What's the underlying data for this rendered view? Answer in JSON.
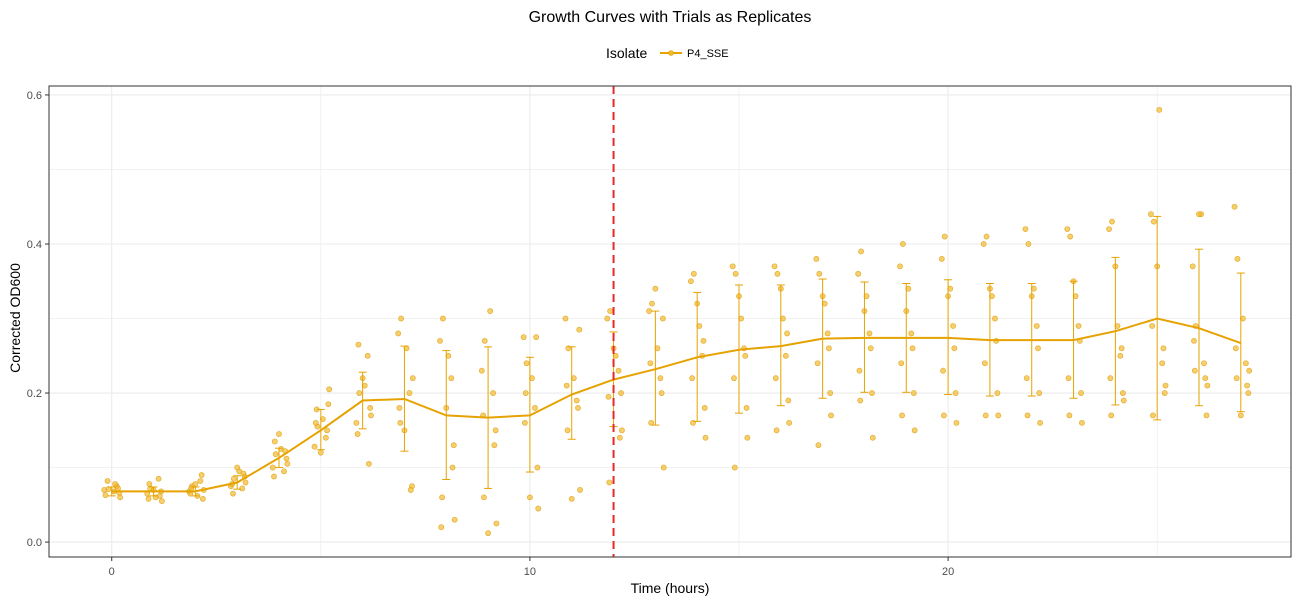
{
  "chart_data": {
    "type": "line",
    "title": "Growth Curves with Trials as Replicates",
    "xlabel": "Time (hours)",
    "ylabel": "Corrected OD600",
    "xlim": [
      -1.5,
      28.2
    ],
    "ylim": [
      -0.02,
      0.612
    ],
    "x_ticks": [
      0,
      10,
      20
    ],
    "y_ticks": [
      0.0,
      0.2,
      0.4,
      0.6
    ],
    "x_tick_labels": [
      "0",
      "10",
      "20"
    ],
    "y_tick_labels": [
      "0.0",
      "0.2",
      "0.4",
      "0.6"
    ],
    "grid": true,
    "legend": {
      "title": "Isolate",
      "position": "top",
      "entries": [
        "P4_SSE"
      ]
    },
    "colors": {
      "series": "#e6a200",
      "points": "#f2b92e",
      "vline": "#e8282a",
      "grid": "#ebebeb"
    },
    "vline": {
      "x": 12,
      "style": "dashed"
    },
    "series": [
      {
        "name": "P4_SSE",
        "x": [
          0,
          1,
          2,
          3,
          4,
          5,
          6,
          7,
          8,
          9,
          10,
          11,
          12,
          13,
          14,
          15,
          16,
          17,
          18,
          19,
          20,
          21,
          22,
          23,
          24,
          25,
          26,
          27
        ],
        "mean": [
          0.068,
          0.068,
          0.068,
          0.08,
          0.113,
          0.15,
          0.19,
          0.192,
          0.17,
          0.167,
          0.17,
          0.198,
          0.218,
          0.232,
          0.248,
          0.258,
          0.263,
          0.273,
          0.274,
          0.274,
          0.274,
          0.271,
          0.271,
          0.271,
          0.283,
          0.3,
          0.287,
          0.267
        ],
        "lower": [
          0.062,
          0.062,
          0.062,
          0.071,
          0.1,
          0.124,
          0.152,
          0.122,
          0.084,
          0.072,
          0.094,
          0.138,
          0.155,
          0.157,
          0.162,
          0.173,
          0.183,
          0.193,
          0.201,
          0.201,
          0.198,
          0.196,
          0.196,
          0.193,
          0.184,
          0.164,
          0.183,
          0.175
        ],
        "upper": [
          0.074,
          0.074,
          0.074,
          0.089,
          0.126,
          0.178,
          0.228,
          0.263,
          0.257,
          0.262,
          0.248,
          0.262,
          0.282,
          0.31,
          0.335,
          0.345,
          0.345,
          0.353,
          0.349,
          0.347,
          0.352,
          0.347,
          0.347,
          0.35,
          0.382,
          0.437,
          0.393,
          0.361
        ],
        "points": [
          [
            -0.15,
            0.063
          ],
          [
            -0.08,
            0.071
          ],
          [
            0.05,
            0.068
          ],
          [
            0.12,
            0.075
          ],
          [
            0.18,
            0.066
          ],
          [
            -0.1,
            0.082
          ],
          [
            0.2,
            0.06
          ],
          [
            0.08,
            0.078
          ],
          [
            -0.18,
            0.07
          ],
          [
            0.15,
            0.072
          ],
          [
            0.85,
            0.065
          ],
          [
            0.92,
            0.072
          ],
          [
            1.05,
            0.06
          ],
          [
            1.12,
            0.085
          ],
          [
            1.18,
            0.068
          ],
          [
            0.9,
            0.078
          ],
          [
            1.2,
            0.055
          ],
          [
            1.0,
            0.07
          ],
          [
            0.88,
            0.058
          ],
          [
            1.15,
            0.062
          ],
          [
            1.85,
            0.068
          ],
          [
            1.92,
            0.075
          ],
          [
            2.05,
            0.062
          ],
          [
            2.12,
            0.082
          ],
          [
            2.18,
            0.058
          ],
          [
            1.9,
            0.072
          ],
          [
            2.2,
            0.07
          ],
          [
            2.0,
            0.078
          ],
          [
            1.88,
            0.065
          ],
          [
            2.15,
            0.09
          ],
          [
            2.85,
            0.075
          ],
          [
            2.92,
            0.085
          ],
          [
            3.05,
            0.095
          ],
          [
            3.12,
            0.072
          ],
          [
            3.18,
            0.088
          ],
          [
            2.9,
            0.065
          ],
          [
            3.2,
            0.08
          ],
          [
            3.0,
            0.1
          ],
          [
            2.88,
            0.078
          ],
          [
            3.15,
            0.092
          ],
          [
            3.85,
            0.1
          ],
          [
            3.92,
            0.118
          ],
          [
            4.05,
            0.125
          ],
          [
            4.12,
            0.095
          ],
          [
            4.18,
            0.112
          ],
          [
            3.9,
            0.135
          ],
          [
            4.2,
            0.105
          ],
          [
            4.0,
            0.145
          ],
          [
            3.88,
            0.088
          ],
          [
            4.15,
            0.122
          ],
          [
            4.85,
            0.128
          ],
          [
            4.92,
            0.155
          ],
          [
            5.05,
            0.165
          ],
          [
            5.12,
            0.14
          ],
          [
            5.18,
            0.185
          ],
          [
            4.9,
            0.178
          ],
          [
            5.2,
            0.205
          ],
          [
            5.0,
            0.12
          ],
          [
            4.88,
            0.16
          ],
          [
            5.15,
            0.15
          ],
          [
            5.85,
            0.16
          ],
          [
            5.92,
            0.2
          ],
          [
            6.05,
            0.21
          ],
          [
            6.12,
            0.25
          ],
          [
            6.18,
            0.18
          ],
          [
            5.9,
            0.265
          ],
          [
            6.2,
            0.17
          ],
          [
            6.0,
            0.22
          ],
          [
            5.88,
            0.145
          ],
          [
            6.15,
            0.105
          ],
          [
            6.85,
            0.28
          ],
          [
            6.92,
            0.3
          ],
          [
            7.05,
            0.26
          ],
          [
            7.12,
            0.2
          ],
          [
            7.18,
            0.075
          ],
          [
            6.9,
            0.16
          ],
          [
            7.2,
            0.22
          ],
          [
            7.0,
            0.15
          ],
          [
            6.88,
            0.18
          ],
          [
            7.15,
            0.07
          ],
          [
            7.85,
            0.27
          ],
          [
            7.92,
            0.3
          ],
          [
            8.05,
            0.25
          ],
          [
            8.12,
            0.22
          ],
          [
            8.18,
            0.13
          ],
          [
            7.9,
            0.06
          ],
          [
            8.2,
            0.03
          ],
          [
            8.0,
            0.18
          ],
          [
            7.88,
            0.02
          ],
          [
            8.15,
            0.1
          ],
          [
            8.85,
            0.23
          ],
          [
            8.92,
            0.27
          ],
          [
            9.05,
            0.31
          ],
          [
            9.12,
            0.2
          ],
          [
            9.18,
            0.15
          ],
          [
            8.9,
            0.06
          ],
          [
            9.2,
            0.025
          ],
          [
            9.0,
            0.012
          ],
          [
            8.88,
            0.17
          ],
          [
            9.15,
            0.13
          ],
          [
            9.85,
            0.275
          ],
          [
            9.92,
            0.24
          ],
          [
            10.05,
            0.22
          ],
          [
            10.12,
            0.18
          ],
          [
            10.18,
            0.1
          ],
          [
            9.9,
            0.2
          ],
          [
            10.2,
            0.045
          ],
          [
            10.0,
            0.06
          ],
          [
            9.88,
            0.16
          ],
          [
            10.15,
            0.275
          ],
          [
            10.85,
            0.3
          ],
          [
            10.92,
            0.26
          ],
          [
            11.05,
            0.22
          ],
          [
            11.12,
            0.19
          ],
          [
            11.18,
            0.285
          ],
          [
            10.9,
            0.15
          ],
          [
            11.2,
            0.07
          ],
          [
            11.0,
            0.058
          ],
          [
            10.88,
            0.21
          ],
          [
            11.15,
            0.18
          ],
          [
            11.85,
            0.3
          ],
          [
            11.92,
            0.31
          ],
          [
            12.05,
            0.25
          ],
          [
            12.12,
            0.23
          ],
          [
            12.18,
            0.2
          ],
          [
            11.9,
            0.08
          ],
          [
            12.2,
            0.15
          ],
          [
            12.0,
            0.26
          ],
          [
            11.88,
            0.195
          ],
          [
            12.15,
            0.14
          ],
          [
            12.85,
            0.31
          ],
          [
            12.92,
            0.32
          ],
          [
            13.05,
            0.26
          ],
          [
            13.12,
            0.22
          ],
          [
            13.18,
            0.3
          ],
          [
            12.9,
            0.16
          ],
          [
            13.2,
            0.1
          ],
          [
            13.0,
            0.34
          ],
          [
            12.88,
            0.24
          ],
          [
            13.15,
            0.2
          ],
          [
            13.85,
            0.35
          ],
          [
            13.92,
            0.36
          ],
          [
            14.05,
            0.29
          ],
          [
            14.12,
            0.25
          ],
          [
            14.18,
            0.18
          ],
          [
            13.9,
            0.16
          ],
          [
            14.2,
            0.14
          ],
          [
            14.0,
            0.32
          ],
          [
            13.88,
            0.22
          ],
          [
            14.15,
            0.27
          ],
          [
            14.85,
            0.37
          ],
          [
            14.92,
            0.36
          ],
          [
            15.05,
            0.3
          ],
          [
            15.12,
            0.26
          ],
          [
            15.18,
            0.18
          ],
          [
            14.9,
            0.1
          ],
          [
            15.2,
            0.14
          ],
          [
            15.0,
            0.33
          ],
          [
            14.88,
            0.22
          ],
          [
            15.15,
            0.25
          ],
          [
            15.85,
            0.37
          ],
          [
            15.92,
            0.36
          ],
          [
            16.05,
            0.3
          ],
          [
            16.12,
            0.25
          ],
          [
            16.18,
            0.19
          ],
          [
            15.9,
            0.15
          ],
          [
            16.2,
            0.16
          ],
          [
            16.0,
            0.34
          ],
          [
            15.88,
            0.22
          ],
          [
            16.15,
            0.28
          ],
          [
            16.85,
            0.38
          ],
          [
            16.92,
            0.36
          ],
          [
            17.05,
            0.32
          ],
          [
            17.12,
            0.28
          ],
          [
            17.18,
            0.2
          ],
          [
            16.9,
            0.13
          ],
          [
            17.2,
            0.17
          ],
          [
            17.0,
            0.33
          ],
          [
            16.88,
            0.24
          ],
          [
            17.15,
            0.26
          ],
          [
            17.85,
            0.36
          ],
          [
            17.92,
            0.39
          ],
          [
            18.05,
            0.33
          ],
          [
            18.12,
            0.28
          ],
          [
            18.18,
            0.2
          ],
          [
            17.9,
            0.19
          ],
          [
            18.2,
            0.14
          ],
          [
            18.0,
            0.31
          ],
          [
            17.88,
            0.23
          ],
          [
            18.15,
            0.26
          ],
          [
            18.85,
            0.37
          ],
          [
            18.92,
            0.4
          ],
          [
            19.05,
            0.34
          ],
          [
            19.12,
            0.28
          ],
          [
            19.18,
            0.2
          ],
          [
            18.9,
            0.17
          ],
          [
            19.2,
            0.15
          ],
          [
            19.0,
            0.31
          ],
          [
            18.88,
            0.24
          ],
          [
            19.15,
            0.26
          ],
          [
            19.85,
            0.38
          ],
          [
            19.92,
            0.41
          ],
          [
            20.05,
            0.34
          ],
          [
            20.12,
            0.29
          ],
          [
            20.18,
            0.2
          ],
          [
            19.9,
            0.17
          ],
          [
            20.2,
            0.16
          ],
          [
            20.0,
            0.33
          ],
          [
            19.88,
            0.23
          ],
          [
            20.15,
            0.26
          ],
          [
            20.85,
            0.4
          ],
          [
            20.92,
            0.41
          ],
          [
            21.05,
            0.33
          ],
          [
            21.12,
            0.3
          ],
          [
            21.18,
            0.2
          ],
          [
            20.9,
            0.17
          ],
          [
            21.2,
            0.17
          ],
          [
            21.0,
            0.34
          ],
          [
            20.88,
            0.24
          ],
          [
            21.15,
            0.27
          ],
          [
            21.85,
            0.42
          ],
          [
            21.92,
            0.4
          ],
          [
            22.05,
            0.34
          ],
          [
            22.12,
            0.29
          ],
          [
            22.18,
            0.2
          ],
          [
            21.9,
            0.17
          ],
          [
            22.2,
            0.16
          ],
          [
            22.0,
            0.33
          ],
          [
            21.88,
            0.22
          ],
          [
            22.15,
            0.26
          ],
          [
            22.85,
            0.42
          ],
          [
            22.92,
            0.41
          ],
          [
            23.05,
            0.33
          ],
          [
            23.12,
            0.29
          ],
          [
            23.18,
            0.2
          ],
          [
            22.9,
            0.17
          ],
          [
            23.2,
            0.16
          ],
          [
            23.0,
            0.35
          ],
          [
            22.88,
            0.22
          ],
          [
            23.15,
            0.27
          ],
          [
            23.85,
            0.42
          ],
          [
            23.92,
            0.43
          ],
          [
            24.05,
            0.29
          ],
          [
            24.12,
            0.25
          ],
          [
            24.18,
            0.2
          ],
          [
            23.9,
            0.17
          ],
          [
            24.2,
            0.19
          ],
          [
            24.0,
            0.37
          ],
          [
            23.88,
            0.22
          ],
          [
            24.15,
            0.26
          ],
          [
            24.85,
            0.44
          ],
          [
            24.92,
            0.43
          ],
          [
            25.05,
            0.58
          ],
          [
            25.12,
            0.24
          ],
          [
            25.18,
            0.2
          ],
          [
            24.9,
            0.17
          ],
          [
            25.2,
            0.21
          ],
          [
            25.0,
            0.37
          ],
          [
            24.88,
            0.29
          ],
          [
            25.15,
            0.26
          ],
          [
            25.85,
            0.37
          ],
          [
            25.92,
            0.29
          ],
          [
            26.05,
            0.44
          ],
          [
            26.12,
            0.24
          ],
          [
            26.18,
            0.17
          ],
          [
            25.9,
            0.23
          ],
          [
            26.2,
            0.21
          ],
          [
            26.0,
            0.44
          ],
          [
            25.88,
            0.27
          ],
          [
            26.15,
            0.22
          ],
          [
            26.85,
            0.45
          ],
          [
            26.92,
            0.38
          ],
          [
            27.05,
            0.3
          ],
          [
            27.12,
            0.24
          ],
          [
            27.18,
            0.2
          ],
          [
            26.9,
            0.22
          ],
          [
            27.2,
            0.23
          ],
          [
            27.0,
            0.17
          ],
          [
            26.88,
            0.26
          ],
          [
            27.15,
            0.21
          ]
        ]
      }
    ]
  }
}
